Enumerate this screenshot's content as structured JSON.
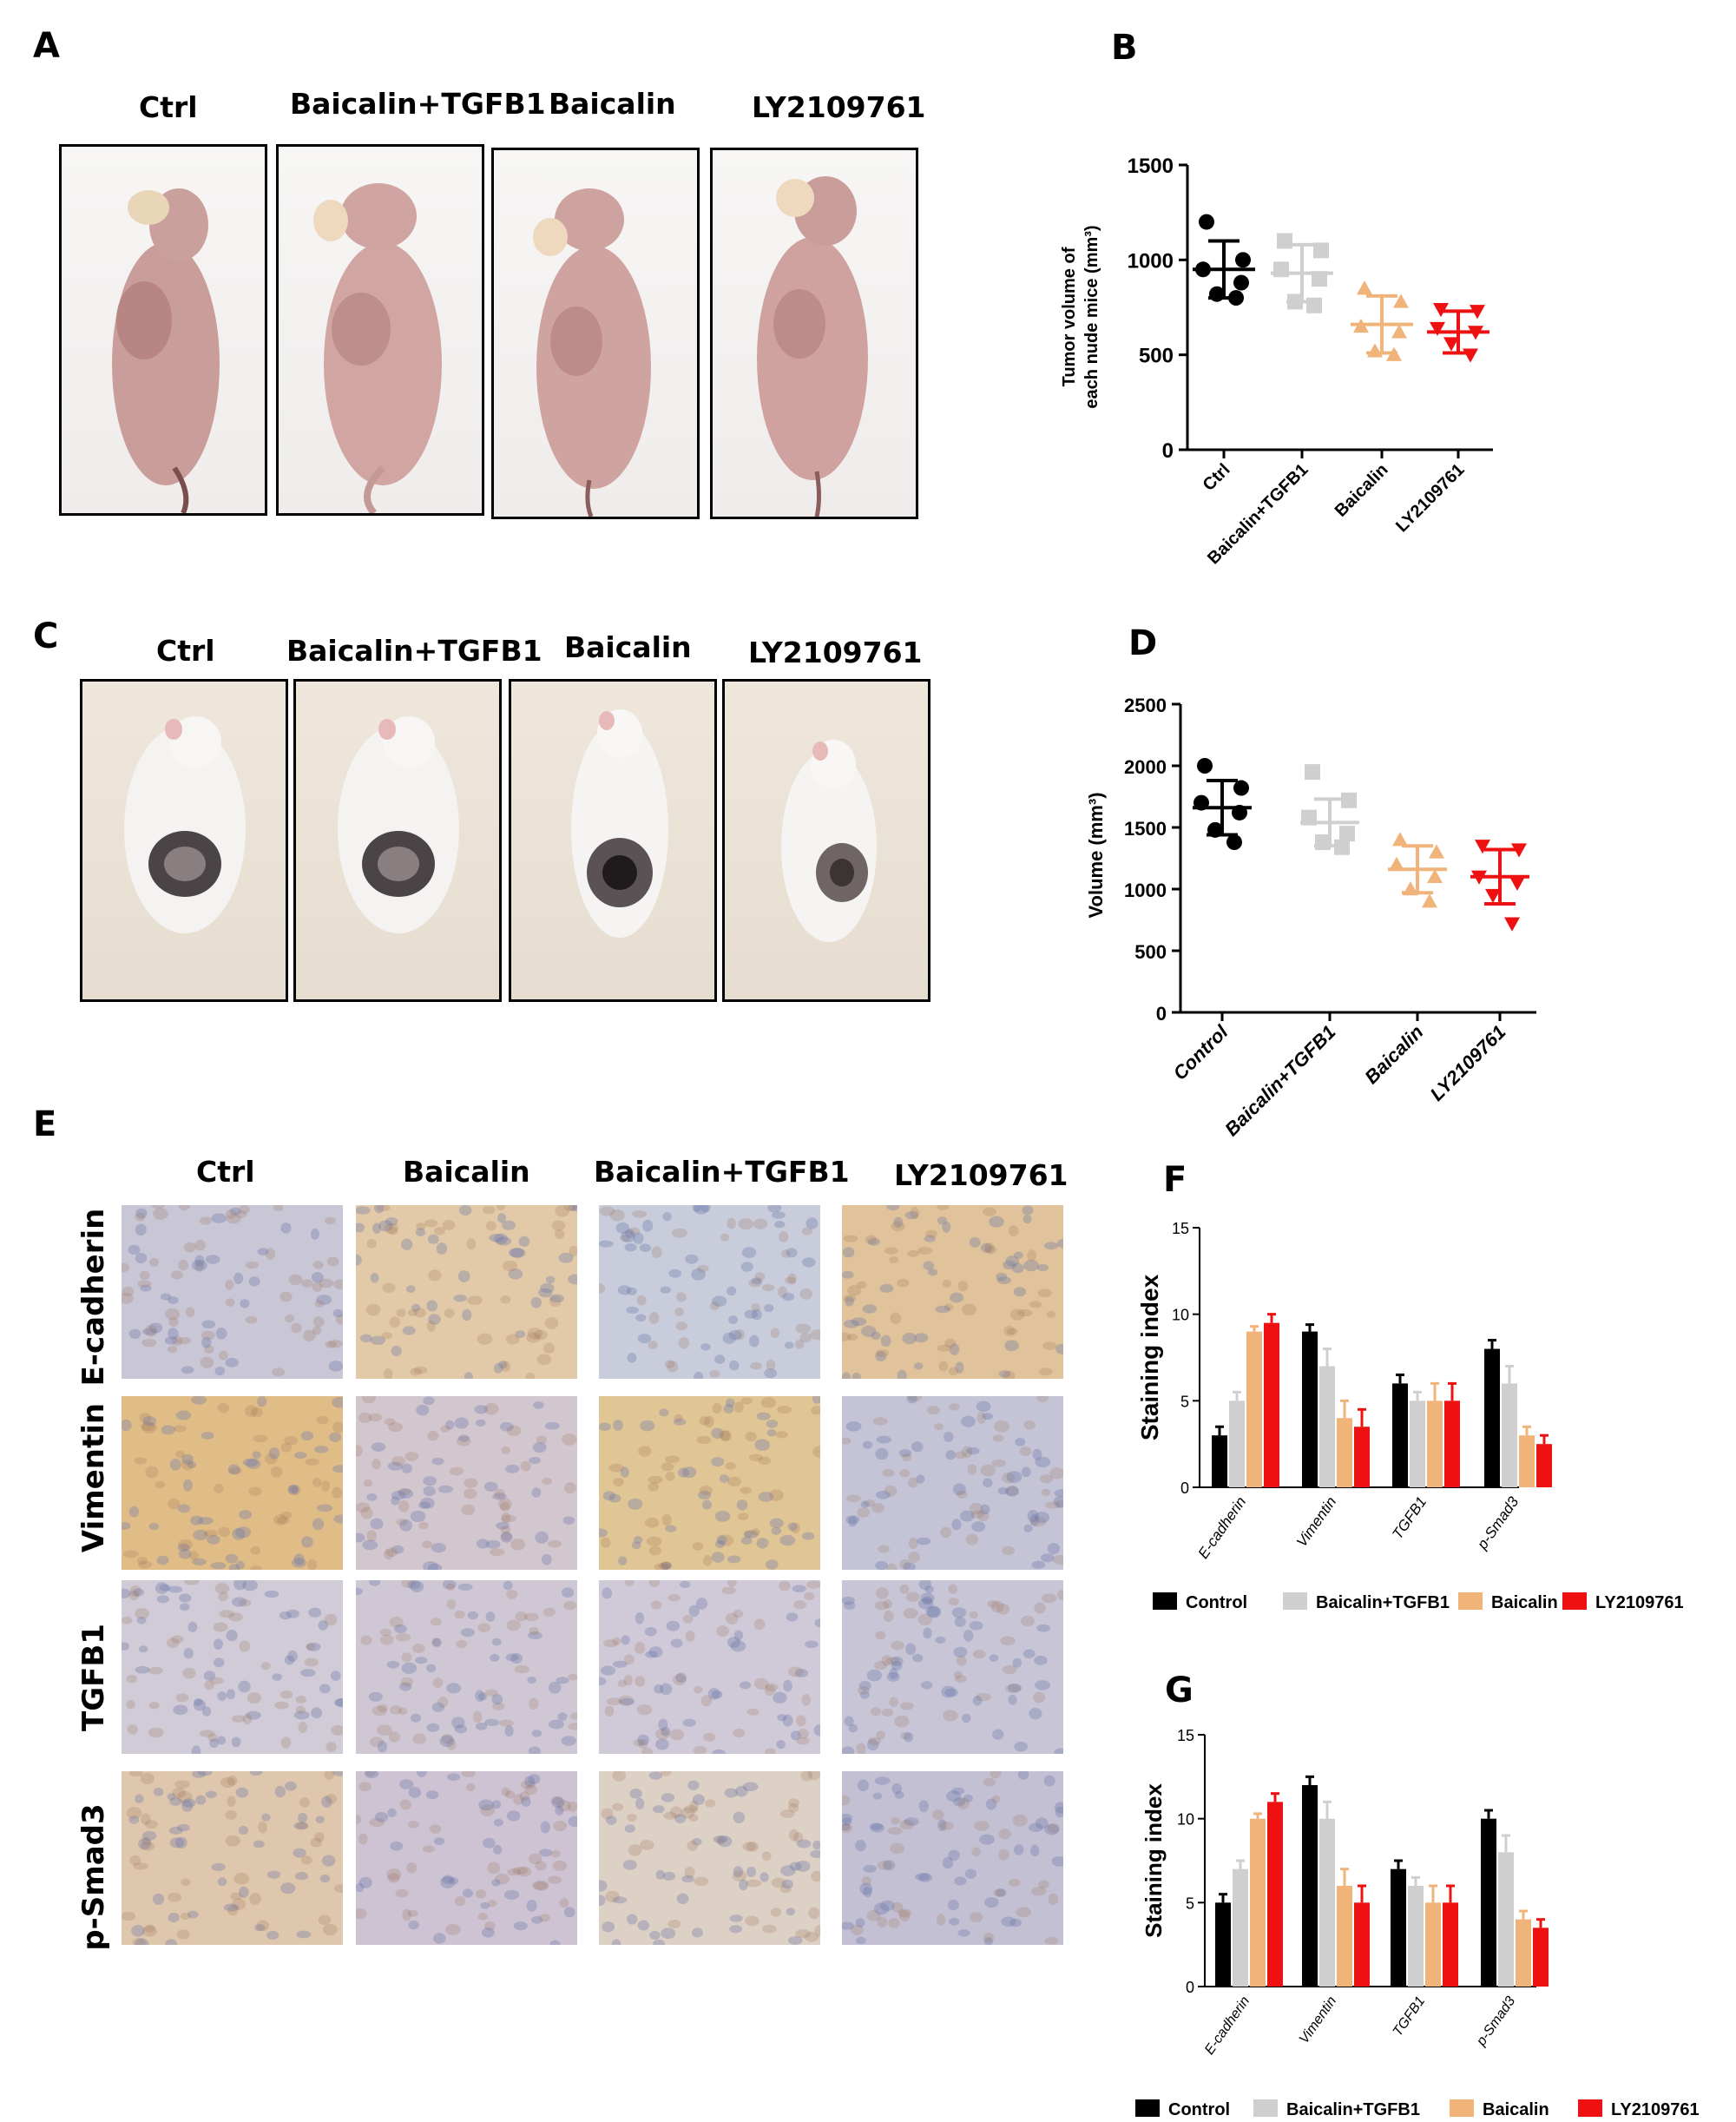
{
  "panel_labels": {
    "A": "A",
    "B": "B",
    "C": "C",
    "D": "D",
    "E": "E",
    "F": "F",
    "G": "G"
  },
  "panelA": {
    "headers": [
      "Ctrl",
      "Baicalin+TGFB1",
      "Baicalin",
      "LY2109761"
    ]
  },
  "panelC": {
    "headers": [
      "Ctrl",
      "Baicalin+TGFB1",
      "Baicalin",
      "LY2109761"
    ]
  },
  "panelE": {
    "col_headers": [
      "Ctrl",
      "Baicalin",
      "Baicalin+TGFB1",
      "LY2109761"
    ],
    "row_labels": [
      "E-cadherin",
      "Vimentin",
      "TGFB1",
      "p-Smad3"
    ]
  },
  "colors": {
    "control": "#000000",
    "baicalin_tgfb1": "#cfcfcf",
    "baicalin": "#f0b47a",
    "ly2109761": "#ee1111"
  },
  "chart_data": [
    {
      "id": "B",
      "type": "scatter",
      "ylabel_lines": [
        "Tumor volume of",
        "each nude mice (mm³)"
      ],
      "ylim": [
        0,
        1500
      ],
      "yticks": [
        0,
        500,
        1000,
        1500
      ],
      "categories": [
        "Ctrl",
        "Baicalin+TGFB1",
        "Baicalin",
        "LY2109761"
      ],
      "series": [
        {
          "marker": "circle",
          "color": "#000000",
          "points": [
            1200,
            1000,
            950,
            880,
            820,
            800
          ],
          "mean": 950,
          "sd": 150
        },
        {
          "marker": "square",
          "color": "#cfcfcf",
          "points": [
            1100,
            1050,
            950,
            900,
            780,
            760
          ],
          "mean": 930,
          "sd": 150
        },
        {
          "marker": "triangle",
          "color": "#f0b47a",
          "points": [
            850,
            780,
            650,
            620,
            520,
            500
          ],
          "mean": 660,
          "sd": 150
        },
        {
          "marker": "triangle-down",
          "color": "#ee1111",
          "points": [
            740,
            730,
            640,
            620,
            560,
            500
          ],
          "mean": 620,
          "sd": 110
        }
      ]
    },
    {
      "id": "D",
      "type": "scatter",
      "ylabel": "Volume (mm³)",
      "ylim": [
        0,
        2500
      ],
      "yticks": [
        0,
        500,
        1000,
        1500,
        2000,
        2500
      ],
      "categories": [
        "Control",
        "Baicalin+TGFB1",
        "Baicalin",
        "LY2109761"
      ],
      "series": [
        {
          "marker": "circle",
          "color": "#000000",
          "points": [
            2000,
            1820,
            1700,
            1620,
            1480,
            1380
          ],
          "mean": 1660,
          "sd": 220
        },
        {
          "marker": "square",
          "color": "#cfcfcf",
          "points": [
            1950,
            1720,
            1580,
            1450,
            1380,
            1340
          ],
          "mean": 1540,
          "sd": 190
        },
        {
          "marker": "triangle",
          "color": "#f0b47a",
          "points": [
            1400,
            1300,
            1200,
            1100,
            1000,
            900
          ],
          "mean": 1160,
          "sd": 190
        },
        {
          "marker": "triangle-down",
          "color": "#ee1111",
          "points": [
            1350,
            1320,
            1100,
            1050,
            950,
            720
          ],
          "mean": 1100,
          "sd": 220
        }
      ]
    },
    {
      "id": "F",
      "type": "bar",
      "ylabel": "Staining index",
      "ylim": [
        0,
        15
      ],
      "yticks": [
        0,
        5,
        10,
        15
      ],
      "categories": [
        "E-cadherin",
        "Vimentin",
        "TGFB1",
        "p-Smad3"
      ],
      "series": [
        {
          "name": "Control",
          "color": "#000000",
          "values": [
            3,
            9,
            6,
            8
          ],
          "err": [
            0.5,
            0.4,
            0.5,
            0.5
          ]
        },
        {
          "name": "Baicalin+TGFB1",
          "color": "#cfcfcf",
          "values": [
            5,
            7,
            5,
            6
          ],
          "err": [
            0.5,
            1.0,
            0.5,
            1.0
          ]
        },
        {
          "name": "Baicalin",
          "color": "#f0b47a",
          "values": [
            9,
            4,
            5,
            3
          ],
          "err": [
            0.3,
            1.0,
            1.0,
            0.5
          ]
        },
        {
          "name": "LY2109761",
          "color": "#ee1111",
          "values": [
            9.5,
            3.5,
            5,
            2.5
          ],
          "err": [
            0.5,
            1.0,
            1.0,
            0.5
          ]
        }
      ]
    },
    {
      "id": "G",
      "type": "bar",
      "ylabel": "Staining index",
      "ylim": [
        0,
        15
      ],
      "yticks": [
        0,
        5,
        10,
        15
      ],
      "categories": [
        "E-cadherin",
        "Vimentin",
        "TGFB1",
        "p-Smad3"
      ],
      "series": [
        {
          "name": "Control",
          "color": "#000000",
          "values": [
            5,
            12,
            7,
            10
          ],
          "err": [
            0.5,
            0.5,
            0.5,
            0.5
          ]
        },
        {
          "name": "Baicalin+TGFB1",
          "color": "#cfcfcf",
          "values": [
            7,
            10,
            6,
            8
          ],
          "err": [
            0.5,
            1.0,
            0.5,
            1.0
          ]
        },
        {
          "name": "Baicalin",
          "color": "#f0b47a",
          "values": [
            10,
            6,
            5,
            4
          ],
          "err": [
            0.3,
            1.0,
            1.0,
            0.5
          ]
        },
        {
          "name": "LY2109761",
          "color": "#ee1111",
          "values": [
            11,
            5,
            5,
            3.5
          ],
          "err": [
            0.5,
            1.0,
            1.0,
            0.5
          ]
        }
      ]
    }
  ]
}
